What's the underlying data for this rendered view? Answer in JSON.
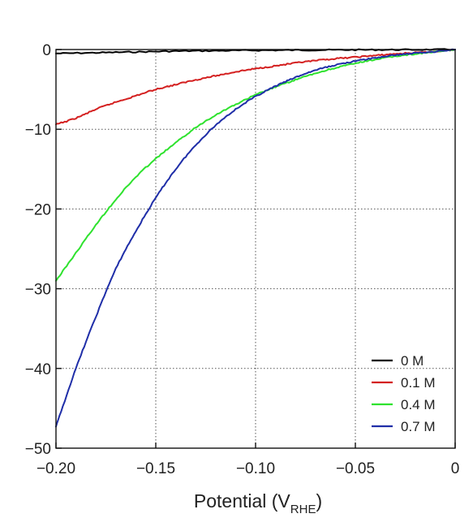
{
  "chart_data": {
    "type": "line",
    "title": "",
    "xlabel": "Potential (V",
    "xlabel_sub": "RHE",
    "xlabel_suffix": ")",
    "ylabel": "",
    "xlim": [
      -0.2,
      0
    ],
    "ylim": [
      -50,
      0
    ],
    "x_ticks": [
      -0.2,
      -0.15,
      -0.1,
      -0.05,
      0
    ],
    "x_tick_labels": [
      "−0.20",
      "−0.15",
      "−0.10",
      "−0.05",
      "0"
    ],
    "y_ticks": [
      0,
      -10,
      -20,
      -30,
      -40,
      -50
    ],
    "y_tick_labels": [
      "0",
      "−10",
      "−20",
      "−30",
      "−40",
      "−50"
    ],
    "grid": true,
    "legend_position": "bottom-right",
    "series": [
      {
        "name": "0 M",
        "color": "#000000",
        "x": [
          -0.2,
          -0.18,
          -0.16,
          -0.14,
          -0.12,
          -0.1,
          -0.08,
          -0.06,
          -0.04,
          -0.02,
          0
        ],
        "y": [
          -0.5,
          -0.4,
          -0.3,
          -0.2,
          -0.15,
          -0.1,
          -0.07,
          -0.05,
          -0.03,
          -0.02,
          0
        ]
      },
      {
        "name": "0.1 M",
        "color": "#d42020",
        "x": [
          -0.2,
          -0.19,
          -0.18,
          -0.17,
          -0.16,
          -0.15,
          -0.14,
          -0.13,
          -0.12,
          -0.11,
          -0.1,
          -0.09,
          -0.08,
          -0.07,
          -0.06,
          -0.05,
          -0.04,
          -0.03,
          -0.02,
          -0.01,
          0
        ],
        "y": [
          -9.4,
          -8.6,
          -7.5,
          -6.6,
          -5.8,
          -5.0,
          -4.4,
          -3.8,
          -3.3,
          -2.8,
          -2.4,
          -2.05,
          -1.7,
          -1.4,
          -1.15,
          -0.95,
          -0.75,
          -0.55,
          -0.4,
          -0.25,
          0
        ]
      },
      {
        "name": "0.4 M",
        "color": "#2ee22e",
        "x": [
          -0.2,
          -0.19,
          -0.18,
          -0.17,
          -0.16,
          -0.15,
          -0.14,
          -0.13,
          -0.12,
          -0.11,
          -0.1,
          -0.09,
          -0.08,
          -0.07,
          -0.06,
          -0.05,
          -0.04,
          -0.03,
          -0.02,
          -0.01,
          0
        ],
        "y": [
          -29.0,
          -25.5,
          -22.0,
          -18.8,
          -16.0,
          -13.7,
          -11.7,
          -9.8,
          -8.2,
          -6.9,
          -5.7,
          -4.7,
          -3.8,
          -3.0,
          -2.3,
          -1.75,
          -1.25,
          -0.85,
          -0.55,
          -0.3,
          0
        ]
      },
      {
        "name": "0.7 M",
        "color": "#1f2ea8",
        "x": [
          -0.2,
          -0.19,
          -0.18,
          -0.17,
          -0.16,
          -0.15,
          -0.14,
          -0.13,
          -0.12,
          -0.11,
          -0.1,
          -0.09,
          -0.08,
          -0.07,
          -0.06,
          -0.05,
          -0.04,
          -0.03,
          -0.02,
          -0.01,
          0
        ],
        "y": [
          -47.3,
          -40.0,
          -33.5,
          -27.5,
          -22.8,
          -18.6,
          -15.0,
          -12.0,
          -9.5,
          -7.5,
          -5.9,
          -4.6,
          -3.5,
          -2.6,
          -1.95,
          -1.45,
          -1.05,
          -0.7,
          -0.45,
          -0.25,
          0
        ]
      }
    ]
  }
}
